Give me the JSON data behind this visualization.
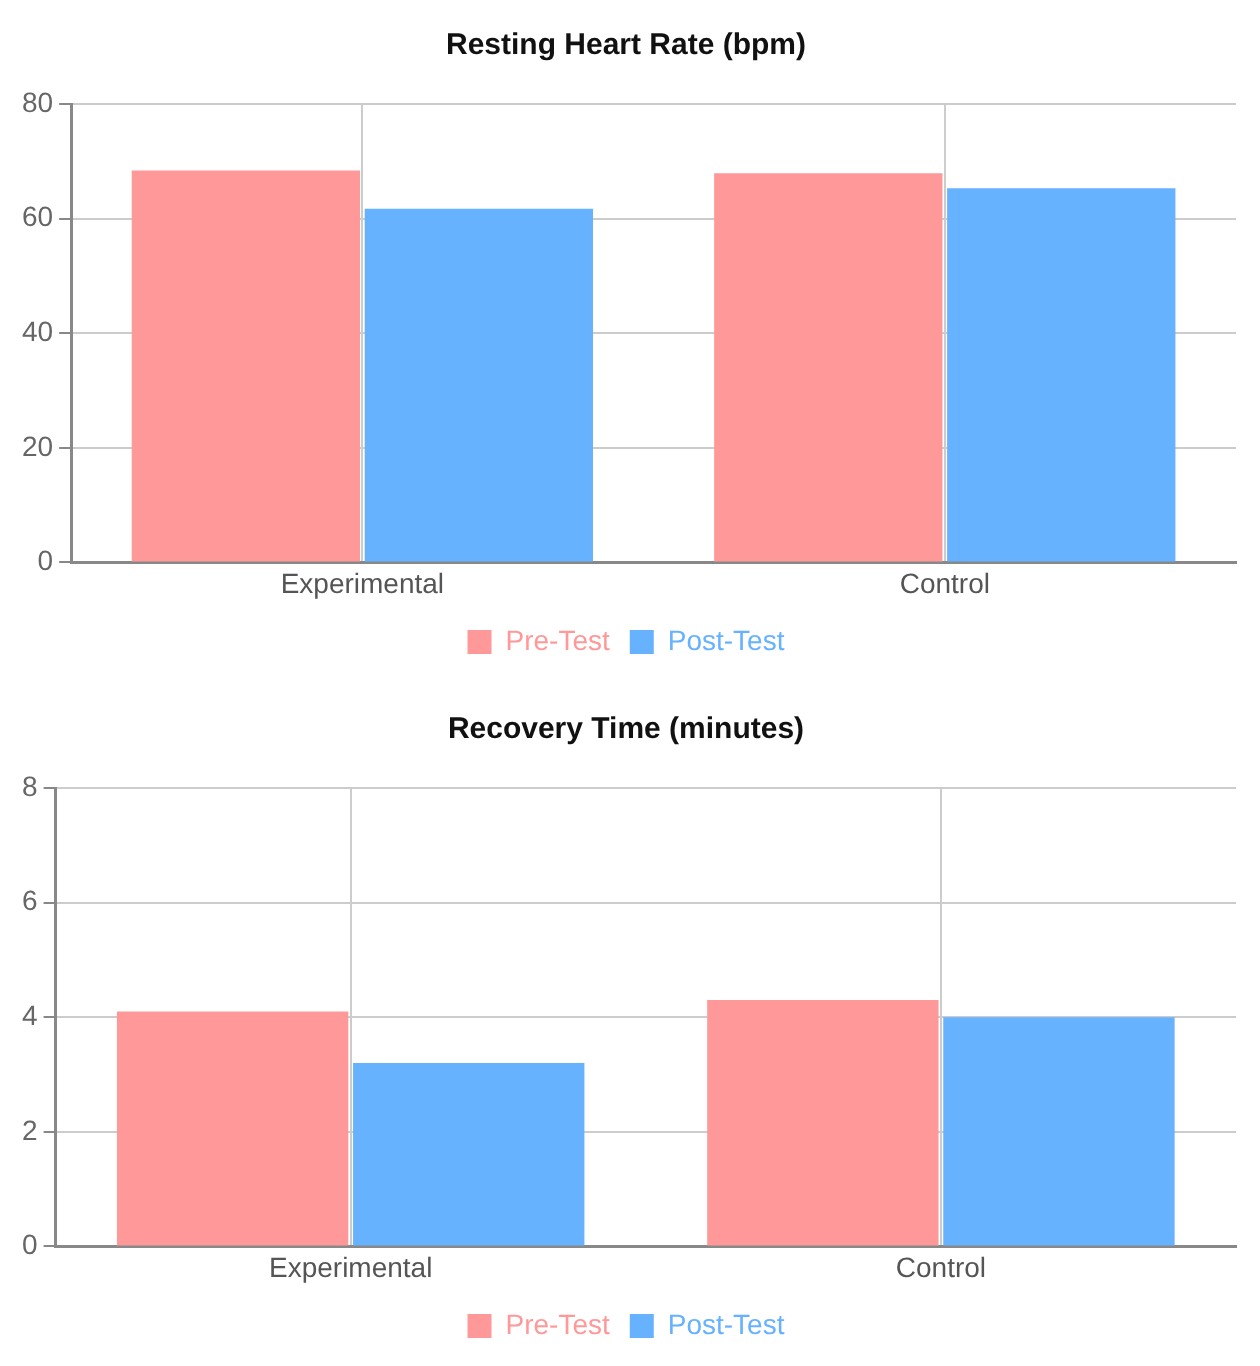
{
  "chart_data": [
    {
      "type": "bar",
      "title": "Resting Heart Rate (bpm)",
      "categories": [
        "Experimental",
        "Control"
      ],
      "series": [
        {
          "name": "Pre-Test",
          "color": "#ff9999",
          "values": [
            68.4,
            67.9
          ]
        },
        {
          "name": "Post-Test",
          "color": "#66b2ff",
          "values": [
            61.7,
            65.3
          ]
        }
      ],
      "ylim": [
        0,
        80
      ],
      "yticks": [
        0,
        20,
        40,
        60,
        80
      ],
      "grid": true,
      "legend": "bottom"
    },
    {
      "type": "bar",
      "title": "Recovery Time (minutes)",
      "categories": [
        "Experimental",
        "Control"
      ],
      "series": [
        {
          "name": "Pre-Test",
          "color": "#ff9999",
          "values": [
            4.1,
            4.3
          ]
        },
        {
          "name": "Post-Test",
          "color": "#66b2ff",
          "values": [
            3.2,
            4.0
          ]
        }
      ],
      "ylim": [
        0,
        8
      ],
      "yticks": [
        0,
        2,
        4,
        6,
        8
      ],
      "grid": true,
      "legend": "bottom"
    }
  ]
}
